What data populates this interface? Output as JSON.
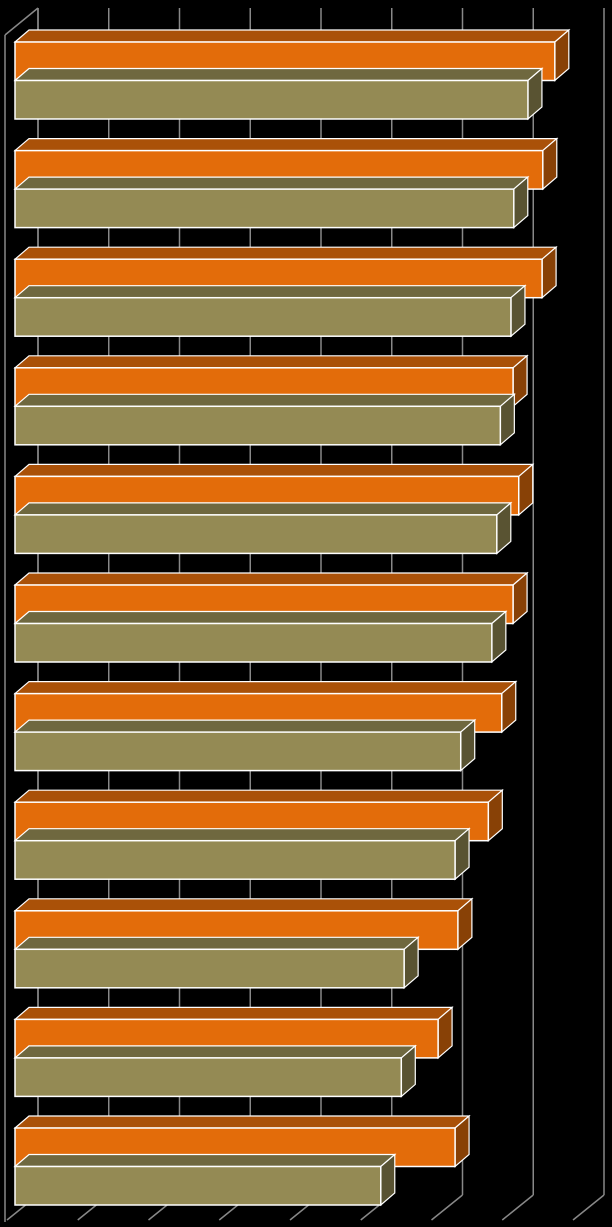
{
  "chart_data": {
    "type": "bar",
    "orientation": "horizontal",
    "three_d": true,
    "categories": [
      null,
      null,
      null,
      null,
      null,
      null,
      null,
      null,
      null,
      null,
      null
    ],
    "series": [
      {
        "color": "#e36c0a",
        "values": [
          7.63,
          7.46,
          7.45,
          7.04,
          7.12,
          7.04,
          6.88,
          6.69,
          6.26,
          5.98,
          6.22
        ]
      },
      {
        "color": "#948a54",
        "values": [
          7.25,
          7.05,
          7.01,
          6.86,
          6.81,
          6.74,
          6.3,
          6.22,
          5.5,
          5.46,
          5.17
        ]
      }
    ],
    "xlim": [
      0,
      8
    ],
    "xticks": [
      0,
      1,
      2,
      3,
      4,
      5,
      6,
      7,
      8
    ],
    "grid": true
  }
}
